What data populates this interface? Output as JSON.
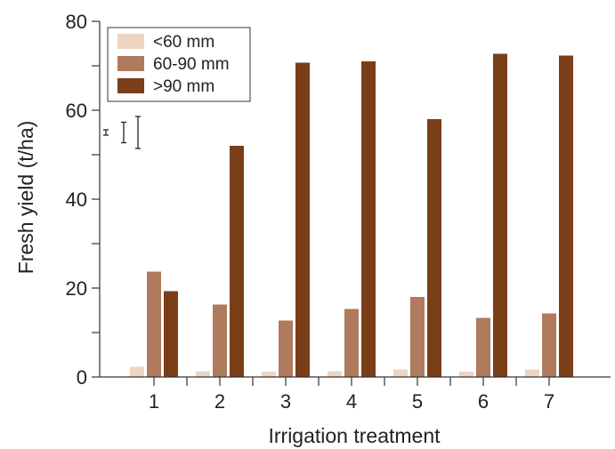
{
  "chart_data": {
    "type": "bar",
    "xlabel": "Irrigation treatment",
    "ylabel": "Fresh yield (t/ha)",
    "ylim": [
      0,
      80
    ],
    "yticks": [
      0,
      20,
      40,
      60,
      80
    ],
    "categories": [
      "1",
      "2",
      "3",
      "4",
      "5",
      "6",
      "7"
    ],
    "series": [
      {
        "name": "<60 mm",
        "color": "#ecd5c3",
        "values": [
          2.3,
          1.3,
          1.2,
          1.3,
          1.7,
          1.2,
          1.7
        ]
      },
      {
        "name": "60-90 mm",
        "color": "#b07a5c",
        "values": [
          23.7,
          16.3,
          12.7,
          15.3,
          18.0,
          13.3,
          14.3
        ]
      },
      {
        "name": ">90 mm",
        "color": "#7a3e19",
        "values": [
          19.3,
          52.0,
          70.7,
          71.0,
          58.0,
          72.7,
          72.3
        ]
      }
    ],
    "error_bars": [
      {
        "series": "<60 mm",
        "half_range": 0.6
      },
      {
        "series": "60-90 mm",
        "half_range": 2.3
      },
      {
        "series": ">90 mm",
        "half_range": 3.6
      }
    ],
    "error_bar_center": 55,
    "legend": {
      "position": "top-left"
    },
    "grid": false
  }
}
